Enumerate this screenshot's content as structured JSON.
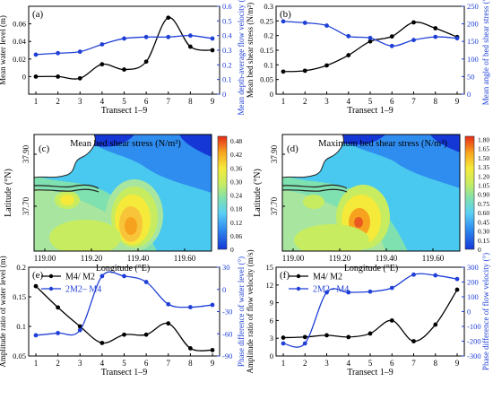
{
  "chart_data": [
    {
      "type": "line",
      "panel": "(a)",
      "xlabel": "Transect 1–9",
      "categories": [
        1,
        2,
        3,
        4,
        5,
        6,
        7,
        8,
        9
      ],
      "y_left": {
        "label": "Mean water level (m)",
        "ylim": [
          -0.02,
          0.08
        ],
        "ticks": [
          0,
          0.02,
          0.04,
          0.06
        ],
        "color": "#000000"
      },
      "y_right": {
        "label": "Mean depth-average flow velocity (m/s)",
        "ylim": [
          0,
          0.6
        ],
        "ticks": [
          0,
          0.1,
          0.2,
          0.3,
          0.4,
          0.5,
          0.6
        ],
        "color": "#1f3fd6"
      },
      "series": [
        {
          "axis": "left",
          "color": "#000000",
          "values": [
            0.0,
            0.0,
            -0.002,
            0.014,
            0.008,
            0.017,
            0.067,
            0.034,
            0.03
          ]
        },
        {
          "axis": "right",
          "color": "#1f3fd6",
          "values": [
            0.27,
            0.28,
            0.29,
            0.34,
            0.38,
            0.39,
            0.39,
            0.4,
            0.38
          ]
        }
      ]
    },
    {
      "type": "line",
      "panel": "(b)",
      "xlabel": "Transect 1–9",
      "categories": [
        1,
        2,
        3,
        4,
        5,
        6,
        7,
        8,
        9
      ],
      "y_left": {
        "label": "Mean bed shear stress (N/m²)",
        "ylim": [
          0,
          0.3
        ],
        "ticks": [
          0,
          0.05,
          0.1,
          0.15,
          0.2,
          0.25,
          0.3
        ],
        "color": "#000000"
      },
      "y_right": {
        "label": "Mean angle of bed shear stress (°)",
        "ylim": [
          0,
          250
        ],
        "ticks": [
          0,
          50,
          100,
          150,
          200,
          250
        ],
        "color": "#1f3fd6"
      },
      "series": [
        {
          "axis": "left",
          "color": "#000000",
          "values": [
            0.077,
            0.08,
            0.098,
            0.133,
            0.18,
            0.197,
            0.245,
            0.225,
            0.195
          ]
        },
        {
          "axis": "right",
          "color": "#1f3fd6",
          "values": [
            207,
            203,
            195,
            165,
            160,
            137,
            154,
            163,
            159
          ]
        }
      ]
    },
    {
      "type": "heatmap",
      "panel": "(c)",
      "title": "Mean bed shear stress (N/m²)",
      "xlabel": "Longitude (°E)",
      "ylabel": "Latitude (°N)",
      "x_ticks": [
        "119.00",
        "119.20",
        "119.40",
        "119.60"
      ],
      "y_ticks": [
        "37.70",
        "37.90"
      ],
      "colorbar_ticks": [
        "0",
        "0.06",
        "0.12",
        "0.18",
        "0.24",
        "0.30",
        "0.36",
        "0.42",
        "0.48"
      ],
      "range": [
        0,
        0.5
      ]
    },
    {
      "type": "heatmap",
      "panel": "(d)",
      "title": "Maximum bed shear stress (N/m²)",
      "xlabel": "Longitude (°E)",
      "ylabel": "Latitude (°N)",
      "x_ticks": [
        "119.00",
        "119.20",
        "119.40",
        "119.60"
      ],
      "y_ticks": [
        "37.70",
        "37.90"
      ],
      "colorbar_ticks": [
        "0",
        "0.15",
        "0.30",
        "0.45",
        "0.60",
        "0.75",
        "0.90",
        "1.05",
        "1.20",
        "1.35",
        "1.50",
        "1.65",
        "1.80"
      ],
      "range": [
        0,
        1.85
      ]
    },
    {
      "type": "line",
      "panel": "(e)",
      "xlabel": "Transect 1–9",
      "categories": [
        1,
        2,
        3,
        4,
        5,
        6,
        7,
        8,
        9
      ],
      "y_left": {
        "label": "Amplitude ratio of water level (m)",
        "ylim": [
          0.05,
          0.2
        ],
        "ticks": [
          0.05,
          0.1,
          0.15,
          0.2
        ],
        "color": "#000000"
      },
      "y_right": {
        "label": "Phase difference of water level (°)",
        "ylim": [
          -90,
          30
        ],
        "ticks": [
          -90,
          -60,
          -30,
          0,
          30
        ],
        "color": "#1f3fd6"
      },
      "legend": [
        "M4/ M2",
        "2M2– M4"
      ],
      "series": [
        {
          "name": "M4/ M2",
          "axis": "left",
          "color": "#000000",
          "values": [
            0.168,
            0.132,
            0.1,
            0.072,
            0.086,
            0.086,
            0.105,
            0.063,
            0.06
          ]
        },
        {
          "name": "2M2– M4",
          "axis": "right",
          "color": "#1f3fd6",
          "values": [
            -62,
            -59,
            -55,
            18,
            18,
            10,
            -20,
            -24,
            -21
          ]
        }
      ]
    },
    {
      "type": "line",
      "panel": "(f)",
      "xlabel": "Transect 1–9",
      "categories": [
        1,
        2,
        3,
        4,
        5,
        6,
        7,
        8,
        9
      ],
      "y_left": {
        "label": "Amplitude ratio of flow velocity (m/s)",
        "ylim": [
          0,
          15
        ],
        "ticks": [
          0,
          3,
          6,
          9,
          12,
          15
        ],
        "color": "#000000"
      },
      "y_right": {
        "label": "Phase difference of flow velocity (°)",
        "ylim": [
          -300,
          300
        ],
        "ticks": [
          -300,
          -200,
          -100,
          0,
          100,
          200,
          300
        ],
        "color": "#1f3fd6"
      },
      "legend": [
        "M4/ M2",
        "2M2– M4"
      ],
      "series": [
        {
          "name": "M4/ M2",
          "axis": "left",
          "color": "#000000",
          "values": [
            3.1,
            3.2,
            3.5,
            3.2,
            3.8,
            6.0,
            2.5,
            5.3,
            11.2
          ]
        },
        {
          "name": "2M2– M4",
          "axis": "right",
          "color": "#1f3fd6",
          "values": [
            -215,
            -215,
            130,
            130,
            135,
            160,
            250,
            245,
            220
          ]
        }
      ]
    }
  ]
}
